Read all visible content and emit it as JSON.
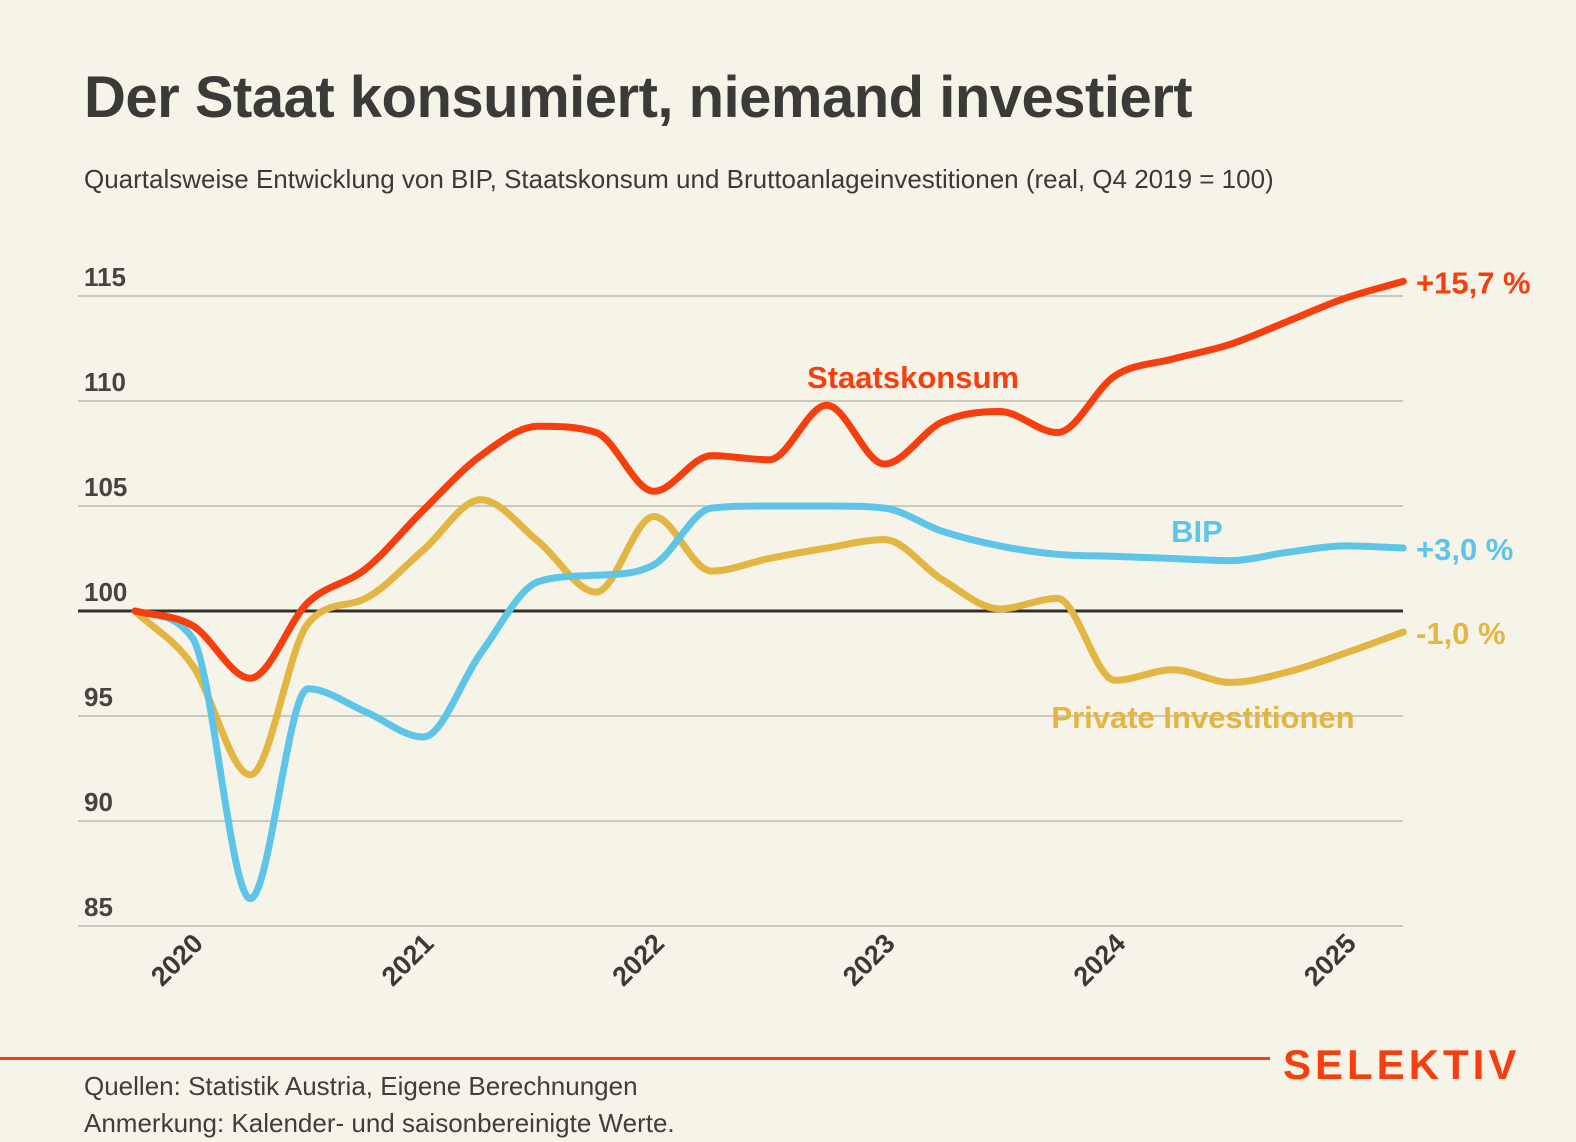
{
  "header": {
    "title": "Der Staat konsumiert, niemand investiert",
    "subtitle": "Quartalsweise Entwicklung von BIP, Staatskonsum und Bruttoanlageinvestitionen (real, Q4 2019 = 100)"
  },
  "chart_data": {
    "type": "line",
    "title": "Der Staat konsumiert, niemand investiert",
    "subtitle": "Quartalsweise Entwicklung von BIP, Staatskonsum und Bruttoanlageinvestitionen (real, Q4 2019 = 100)",
    "x_unit": "quarter",
    "categories": [
      "2019 Q4",
      "2020 Q1",
      "2020 Q2",
      "2020 Q3",
      "2020 Q4",
      "2021 Q1",
      "2021 Q2",
      "2021 Q3",
      "2021 Q4",
      "2022 Q1",
      "2022 Q2",
      "2022 Q3",
      "2022 Q4",
      "2023 Q1",
      "2023 Q2",
      "2023 Q3",
      "2023 Q4",
      "2024 Q1",
      "2024 Q2",
      "2024 Q3",
      "2024 Q4",
      "2025 Q1",
      "2025 Q2"
    ],
    "x_axis_ticks": [
      "2020",
      "2021",
      "2022",
      "2023",
      "2024",
      "2025"
    ],
    "y_ticks": [
      115,
      110,
      105,
      100,
      95,
      90,
      85
    ],
    "ylim": [
      84,
      117
    ],
    "baseline_value": 100,
    "grid": true,
    "legend_position": "inline-annotations",
    "series": [
      {
        "name": "Staatskonsum",
        "color": "#F63E0F",
        "end_label": "+15,7 %",
        "values": [
          100,
          99.3,
          96.8,
          100.4,
          102.0,
          104.8,
          107.4,
          108.8,
          108.5,
          105.7,
          107.4,
          107.2,
          109.8,
          107.0,
          109.0,
          109.5,
          108.5,
          111.2,
          112.0,
          112.7,
          113.8,
          114.9,
          115.7
        ]
      },
      {
        "name": "BIP",
        "color": "#5EC5E8",
        "end_label": "+3,0 %",
        "values": [
          100,
          98.7,
          86.3,
          96.3,
          95.2,
          94.0,
          98.0,
          101.4,
          101.7,
          102.2,
          104.9,
          105.0,
          105.0,
          104.9,
          103.8,
          103.1,
          102.7,
          102.6,
          102.5,
          102.4,
          102.8,
          103.1,
          103.0
        ]
      },
      {
        "name": "Private Investitionen",
        "color": "#E3B542",
        "end_label": "-1,0 %",
        "values": [
          100,
          97.4,
          92.2,
          99.4,
          100.6,
          102.9,
          105.3,
          103.3,
          100.9,
          104.5,
          101.9,
          102.5,
          103.0,
          103.4,
          101.5,
          100.1,
          100.6,
          96.7,
          97.2,
          96.6,
          97.1,
          98.0,
          99.0
        ]
      }
    ]
  },
  "footer": {
    "source": "Quellen: Statistik Austria, Eigene Berechnungen",
    "note": "Anmerkung: Kalender- und saisonbereinigte Werte.",
    "logo": "SELEKTIV"
  },
  "colors": {
    "background": "#F6F4E9",
    "text": "#3A3A38",
    "grid": "#CBC8BD",
    "baseline": "#312F2C",
    "accent_red": "#F63E0F",
    "series_blue": "#5EC5E8",
    "series_yellow": "#E3B542"
  }
}
